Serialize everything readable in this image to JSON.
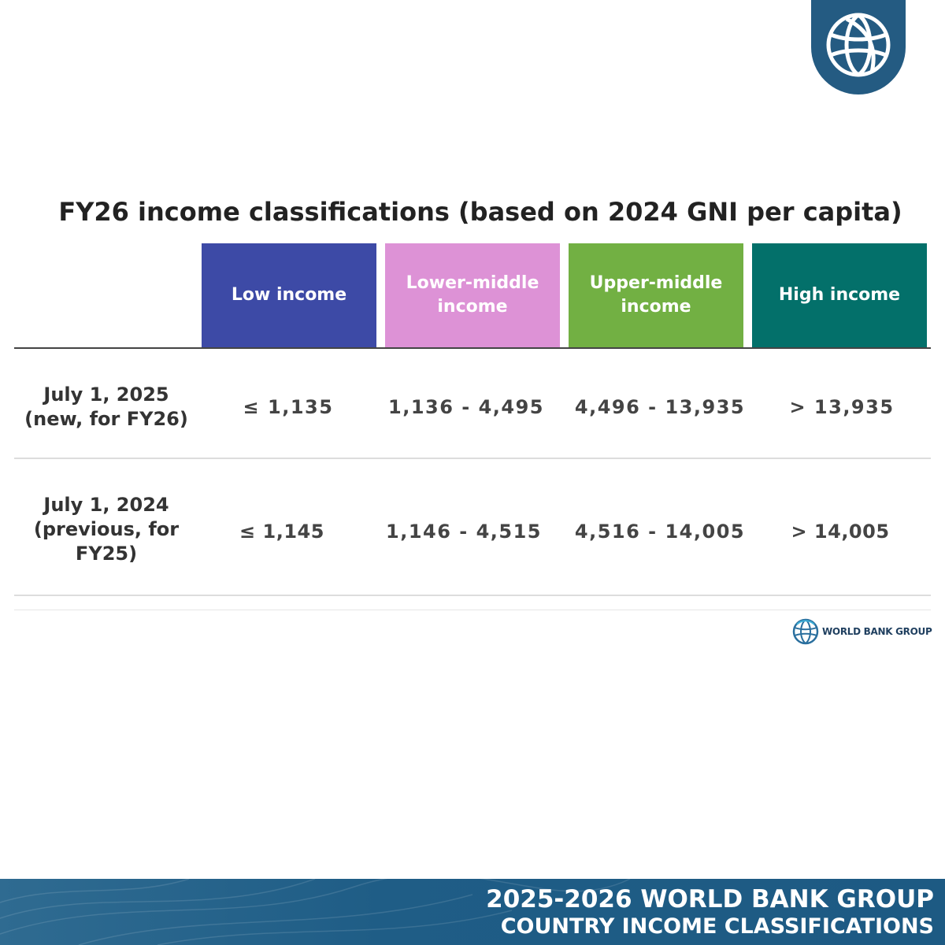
{
  "logo": {
    "icon": "globe-icon",
    "badge_color": "#245b82"
  },
  "title": "FY26 income classifications (based on 2024 GNI per capita)",
  "columns": [
    {
      "label": "Low income",
      "color": "#3d4aa6"
    },
    {
      "label": "Lower-middle income",
      "color": "#dd92d6"
    },
    {
      "label": "Upper-middle income",
      "color": "#72b043"
    },
    {
      "label": "High income",
      "color": "#03706a"
    }
  ],
  "rows": [
    {
      "label": "July 1, 2025 (new, for FY26)",
      "values": [
        "≤ 1,135",
        "1,136 - 4,495",
        "4,496 - 13,935",
        "> 13,935"
      ]
    },
    {
      "label": "July 1, 2024 (previous, for FY25)",
      "values": [
        "≤ 1,145",
        "1,146 - 4,515",
        "4,516 - 14,005",
        "> 14,005"
      ]
    }
  ],
  "brand": {
    "icon": "world-bank-logo-icon",
    "text": "WORLD BANK GROUP"
  },
  "footer": {
    "line1": "2025-2026 WORLD BANK GROUP",
    "line2": "COUNTRY INCOME CLASSIFICATIONS"
  }
}
